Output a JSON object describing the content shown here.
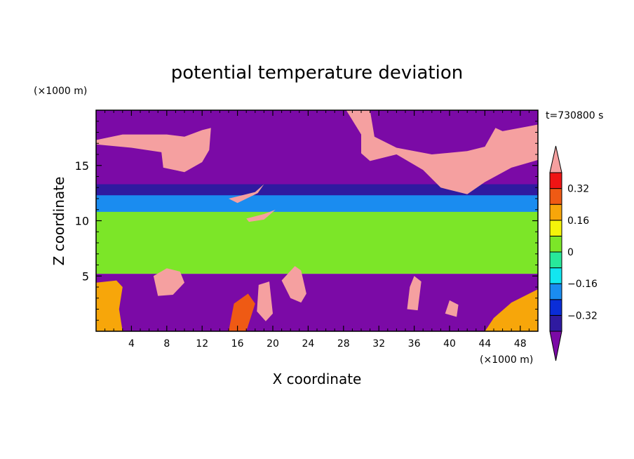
{
  "chart_data": {
    "type": "heatmap",
    "title": "potential temperature deviation",
    "xlabel": "X coordinate",
    "ylabel": "Z coordinate",
    "x_unit": "(×1000 m)",
    "y_unit": "(×1000 m)",
    "time_label": "t=730800 s",
    "xlim": [
      0,
      50
    ],
    "ylim": [
      0,
      20
    ],
    "x_ticks": [
      4,
      8,
      12,
      16,
      20,
      24,
      28,
      32,
      36,
      40,
      44,
      48
    ],
    "x_minor": [
      1,
      2,
      3,
      5,
      6,
      7,
      9,
      10,
      11,
      13,
      14,
      15,
      17,
      18,
      19,
      21,
      22,
      23,
      25,
      26,
      27,
      29,
      30,
      31,
      33,
      34,
      35,
      37,
      38,
      39,
      41,
      42,
      43,
      45,
      46,
      47,
      49
    ],
    "y_ticks": [
      5,
      10,
      15
    ],
    "y_minor": [
      1,
      2,
      3,
      4,
      6,
      7,
      8,
      9,
      11,
      12,
      13,
      14,
      16,
      17,
      18,
      19
    ],
    "colorbar": {
      "levels": [
        -0.4,
        -0.32,
        -0.24,
        -0.16,
        -0.08,
        0,
        0.08,
        0.16,
        0.24,
        0.32,
        0.4
      ],
      "labeled": [
        0.32,
        0.16,
        0,
        -0.16,
        -0.32
      ],
      "labels": [
        "0.32",
        "0.16",
        "0",
        "−0.16",
        "−0.32"
      ],
      "colors": [
        "#7b0aa6",
        "#2f1aa0",
        "#0a2dd8",
        "#1a8cf0",
        "#12e6f0",
        "#28e89a",
        "#7ce628",
        "#f4f40a",
        "#f7a60a",
        "#ef5a14",
        "#ef1414",
        "#f5a0a0"
      ]
    },
    "regions": [
      {
        "value": 0.05,
        "desc": "background mid layer",
        "poly": [
          [
            0,
            5.2
          ],
          [
            50,
            5.2
          ],
          [
            50,
            12.6
          ],
          [
            0,
            12.6
          ]
        ]
      },
      {
        "value": -0.2,
        "desc": "cyan band",
        "poly": [
          [
            0,
            10.8
          ],
          [
            50,
            10.8
          ],
          [
            50,
            12.4
          ],
          [
            0,
            12.4
          ]
        ]
      },
      {
        "value": -0.35,
        "desc": "blue band top",
        "poly": [
          [
            0,
            12.3
          ],
          [
            50,
            12.3
          ],
          [
            50,
            13.4
          ],
          [
            0,
            13.4
          ]
        ]
      },
      {
        "value": -0.45,
        "desc": "upper purple",
        "poly": [
          [
            0,
            13.3
          ],
          [
            50,
            13.3
          ],
          [
            50,
            20
          ],
          [
            0,
            20
          ]
        ]
      },
      {
        "value": 0.45,
        "desc": "upper pink left",
        "poly": [
          [
            0,
            17.3
          ],
          [
            3,
            17.8
          ],
          [
            8,
            17.8
          ],
          [
            10,
            17.6
          ],
          [
            12,
            18.2
          ],
          [
            13,
            18.4
          ],
          [
            12.8,
            16.4
          ],
          [
            12,
            15.3
          ],
          [
            10,
            14.4
          ],
          [
            7.6,
            14.8
          ],
          [
            7.4,
            16.2
          ],
          [
            4,
            16.6
          ],
          [
            0,
            16.9
          ]
        ]
      },
      {
        "value": 0.45,
        "desc": "upper pink right",
        "poly": [
          [
            28.3,
            20
          ],
          [
            31,
            20
          ],
          [
            31.5,
            17.6
          ],
          [
            34,
            16.6
          ],
          [
            38,
            16
          ],
          [
            42,
            16.3
          ],
          [
            44,
            16.7
          ],
          [
            45.2,
            18.4
          ],
          [
            46,
            18.1
          ],
          [
            50,
            18.7
          ],
          [
            50,
            15.5
          ],
          [
            47,
            14.8
          ],
          [
            44,
            13.5
          ],
          [
            42,
            12.4
          ],
          [
            39,
            13
          ],
          [
            37,
            14.6
          ],
          [
            34,
            16
          ],
          [
            31,
            15.4
          ],
          [
            30,
            16.1
          ],
          [
            30,
            17.8
          ]
        ]
      },
      {
        "value": 0.45,
        "desc": "pink patch mid",
        "poly": [
          [
            15,
            12
          ],
          [
            18,
            12.6
          ],
          [
            19,
            13.3
          ],
          [
            18.3,
            12.5
          ],
          [
            16,
            11.6
          ]
        ]
      },
      {
        "value": 0.45,
        "desc": "pink patch mid2",
        "poly": [
          [
            17,
            10.2
          ],
          [
            19,
            10.6
          ],
          [
            20.3,
            11
          ],
          [
            19,
            10.1
          ],
          [
            17.3,
            9.9
          ]
        ]
      },
      {
        "value": -0.45,
        "desc": "lower purple",
        "poly": [
          [
            0,
            0
          ],
          [
            50,
            0
          ],
          [
            50,
            5.2
          ],
          [
            0,
            5.2
          ]
        ]
      },
      {
        "value": 0.2,
        "desc": "lower yellow left",
        "poly": [
          [
            0,
            0
          ],
          [
            3,
            0
          ],
          [
            2.6,
            2
          ],
          [
            3,
            4
          ],
          [
            2.3,
            4.6
          ],
          [
            0,
            4.4
          ]
        ]
      },
      {
        "value": 0.45,
        "desc": "plume pink 1",
        "poly": [
          [
            6.5,
            5
          ],
          [
            8,
            5.7
          ],
          [
            9.5,
            5.4
          ],
          [
            10,
            4.4
          ],
          [
            8.7,
            3.3
          ],
          [
            7,
            3.2
          ]
        ]
      },
      {
        "value": 0.28,
        "desc": "plume red",
        "poly": [
          [
            15,
            0
          ],
          [
            17,
            0
          ],
          [
            18,
            2.5
          ],
          [
            17.2,
            3.4
          ],
          [
            15.6,
            2.5
          ]
        ]
      },
      {
        "value": 0.45,
        "desc": "plume pink 2",
        "poly": [
          [
            21,
            4.6
          ],
          [
            22,
            3
          ],
          [
            23.2,
            2.6
          ],
          [
            23.8,
            3.4
          ],
          [
            23.2,
            5.5
          ],
          [
            22.5,
            5.9
          ]
        ]
      },
      {
        "value": 0.45,
        "desc": "plume pink 3",
        "poly": [
          [
            18.2,
            1.8
          ],
          [
            19.2,
            0.9
          ],
          [
            20,
            1.6
          ],
          [
            19.6,
            4.5
          ],
          [
            18.4,
            4.2
          ]
        ]
      },
      {
        "value": 0.45,
        "desc": "plume pink 4",
        "poly": [
          [
            35.2,
            2
          ],
          [
            36.4,
            1.9
          ],
          [
            36.8,
            4.5
          ],
          [
            36,
            5
          ],
          [
            35.5,
            4
          ]
        ]
      },
      {
        "value": 0.2,
        "desc": "yellow right",
        "poly": [
          [
            44,
            0
          ],
          [
            50,
            0
          ],
          [
            50,
            3.8
          ],
          [
            47,
            2.6
          ],
          [
            45,
            1.2
          ]
        ]
      },
      {
        "value": 0.45,
        "desc": "plume pink 5",
        "poly": [
          [
            39.5,
            1.6
          ],
          [
            40.8,
            1.3
          ],
          [
            41,
            2.4
          ],
          [
            40,
            2.8
          ]
        ]
      }
    ]
  }
}
